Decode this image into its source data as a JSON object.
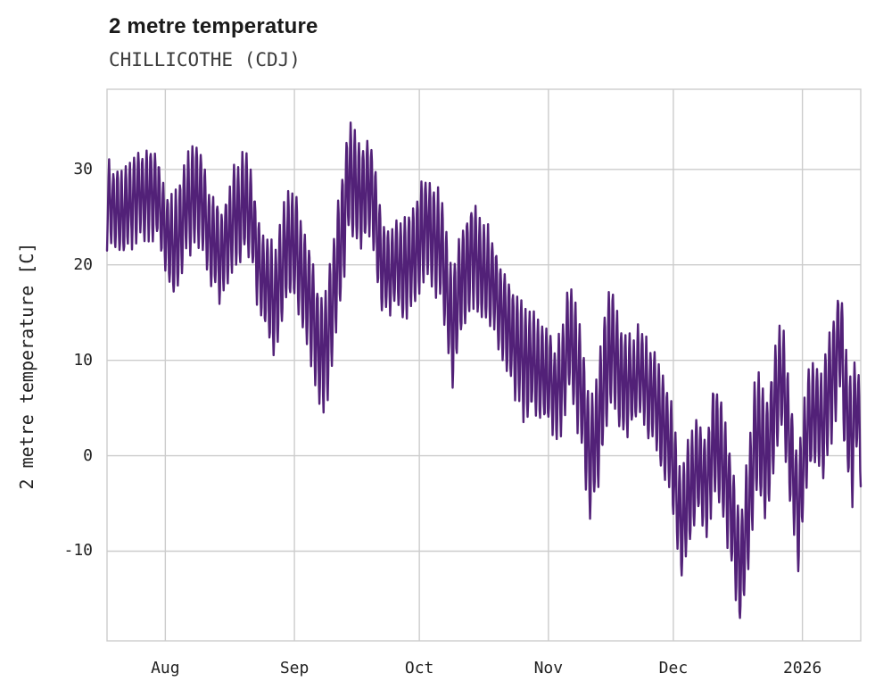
{
  "title": "2 metre temperature",
  "subtitle": "CHILLICOTHE (CDJ)",
  "chart_data": {
    "type": "line",
    "title": "2 metre temperature",
    "subtitle": "CHILLICOTHE (CDJ)",
    "xlabel": "",
    "ylabel": "2 metre temperature [C]",
    "legend": [],
    "grid": true,
    "background": "#ffffff",
    "line_color": "#522178",
    "grid_color": "#cccccc",
    "ylim": [
      -19.4,
      38.4
    ],
    "yticks": [
      -10,
      0,
      10,
      20,
      30
    ],
    "x_total_days": 181,
    "xticks": [
      {
        "label": "Aug",
        "day": 14
      },
      {
        "label": "Sep",
        "day": 45
      },
      {
        "label": "Oct",
        "day": 75
      },
      {
        "label": "Nov",
        "day": 106
      },
      {
        "label": "Dec",
        "day": 136
      },
      {
        "label": "2026",
        "day": 167
      }
    ],
    "observed_extremes": {
      "max_c": 35.7,
      "min_c": -17.0
    },
    "series_model": {
      "comment": "Hourly-style temperature trace reconstructed from chart: anchors are [day_index, daily_mean_C, diurnal_amplitude_C], day 0 = left edge of plot",
      "samples_per_day": 8,
      "anchors": [
        [
          0,
          26.5,
          4
        ],
        [
          3,
          27.5,
          4.5
        ],
        [
          6,
          26,
          4
        ],
        [
          9,
          28,
          4.5
        ],
        [
          12,
          27,
          4.5
        ],
        [
          14,
          23,
          4
        ],
        [
          16,
          20,
          5
        ],
        [
          19,
          25.5,
          5
        ],
        [
          22,
          27,
          5
        ],
        [
          25,
          21.5,
          4.5
        ],
        [
          27,
          19.5,
          4.5
        ],
        [
          30,
          25,
          5
        ],
        [
          33,
          26.5,
          5
        ],
        [
          36,
          21,
          4.5
        ],
        [
          38,
          18.5,
          5
        ],
        [
          40,
          15.5,
          5.5
        ],
        [
          43,
          21.5,
          5.5
        ],
        [
          45,
          22,
          5
        ],
        [
          48,
          17,
          5.5
        ],
        [
          51,
          12.5,
          5.5
        ],
        [
          53,
          14,
          6
        ],
        [
          56,
          22,
          6
        ],
        [
          58,
          29,
          6
        ],
        [
          61,
          27,
          5
        ],
        [
          63,
          26.5,
          5
        ],
        [
          66,
          21,
          4.5
        ],
        [
          68,
          18.5,
          4
        ],
        [
          71,
          19.5,
          5
        ],
        [
          73,
          22,
          5
        ],
        [
          75,
          23.5,
          5
        ],
        [
          77,
          25.5,
          5
        ],
        [
          80,
          22.5,
          5.5
        ],
        [
          83,
          14.5,
          6
        ],
        [
          85,
          19,
          5.5
        ],
        [
          88,
          22.5,
          5
        ],
        [
          91,
          21,
          5
        ],
        [
          94,
          17.5,
          4.5
        ],
        [
          97,
          12,
          5
        ],
        [
          100,
          10,
          5.5
        ],
        [
          103,
          12,
          5
        ],
        [
          106,
          9,
          4.5
        ],
        [
          109,
          7,
          5
        ],
        [
          111,
          14,
          6
        ],
        [
          114,
          8,
          6
        ],
        [
          116,
          2,
          5.5
        ],
        [
          118,
          6.5,
          6
        ],
        [
          121,
          15.5,
          6.5
        ],
        [
          123,
          11,
          5.5
        ],
        [
          126,
          8.5,
          4.5
        ],
        [
          129,
          9.5,
          4.5
        ],
        [
          132,
          7.5,
          5
        ],
        [
          134,
          3,
          5
        ],
        [
          136,
          -1,
          5
        ],
        [
          138,
          -7.5,
          5
        ],
        [
          140,
          -3,
          5.5
        ],
        [
          142,
          0.5,
          5
        ],
        [
          144,
          -2.5,
          5
        ],
        [
          146,
          3.5,
          6
        ],
        [
          148,
          1,
          5
        ],
        [
          150,
          -4,
          5.5
        ],
        [
          152,
          -10.5,
          5.5
        ],
        [
          154,
          -4,
          6
        ],
        [
          156,
          5.5,
          6.5
        ],
        [
          158,
          1,
          6
        ],
        [
          160,
          6,
          6
        ],
        [
          162,
          10.5,
          5.5
        ],
        [
          164,
          2.5,
          6
        ],
        [
          166,
          -5,
          5.5
        ],
        [
          168,
          2,
          5.5
        ],
        [
          170,
          4,
          5
        ],
        [
          172,
          2.5,
          5.5
        ],
        [
          174,
          7,
          6
        ],
        [
          176,
          12.5,
          5.5
        ],
        [
          177,
          6,
          6
        ],
        [
          179,
          1,
          6
        ],
        [
          180,
          7,
          5.5
        ],
        [
          181,
          0.5,
          4
        ]
      ],
      "noise": {
        "seed": 7,
        "walk_step": 0.5,
        "walk_damp": 0.985,
        "jitter": 0.6
      }
    }
  }
}
